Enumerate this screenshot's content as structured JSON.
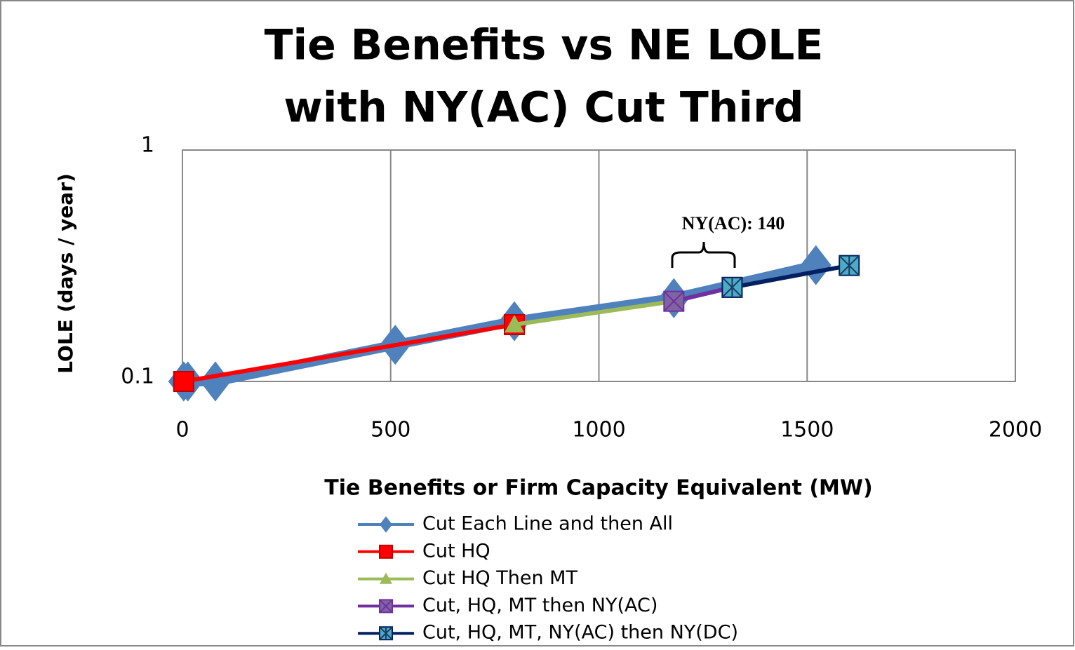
{
  "chart_data": {
    "type": "line",
    "title": [
      "Tie Benefits  vs NE LOLE",
      "with NY(AC) Cut Third"
    ],
    "x_label": "Tie Benefits or Firm Capacity Equivalent  (MW)",
    "y_label": "LOLE (days / year)",
    "xlim": [
      0,
      2000
    ],
    "xticks": [
      0,
      500,
      1000,
      1500,
      2000
    ],
    "ylim": [
      0.1,
      1
    ],
    "yticks": [
      0.1,
      1
    ],
    "y_log": true,
    "grid": true,
    "annotation": "NY(AC): 140",
    "series": [
      {
        "name": "Cut Each Line and then All",
        "color": "#4f81bd",
        "marker": "diamond",
        "x": [
          3,
          13,
          79,
          511,
          797,
          1180,
          1521
        ],
        "values": [
          0.1,
          0.1,
          0.1,
          0.144,
          0.182,
          0.229,
          0.318
        ]
      },
      {
        "name": "Cut HQ",
        "color": "#ff0000",
        "marker": "square",
        "x": [
          3,
          797
        ],
        "values": [
          0.1,
          0.176
        ]
      },
      {
        "name": "Cut HQ Then MT",
        "color": "#9bbb59",
        "marker": "triangle",
        "x": [
          797,
          1180
        ],
        "values": [
          0.176,
          0.222
        ]
      },
      {
        "name": "Cut, HQ, MT then NY(AC)",
        "color": "#7030a0",
        "marker": "xsquare",
        "x": [
          1180,
          1320
        ],
        "values": [
          0.222,
          0.255
        ]
      },
      {
        "name": "Cut, HQ, MT, NY(AC) then NY(DC)",
        "color": "#002060",
        "marker": "starsquare",
        "x": [
          1320,
          1601
        ],
        "values": [
          0.255,
          0.317
        ]
      }
    ]
  }
}
